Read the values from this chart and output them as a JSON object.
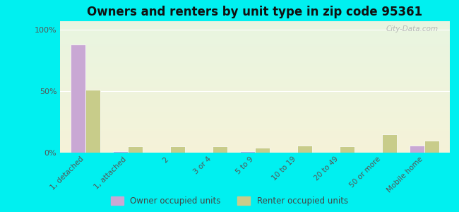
{
  "title": "Owners and renters by unit type in zip code 95361",
  "categories": [
    "1, detached",
    "1, attached",
    "2",
    "3 or 4",
    "5 to 9",
    "10 to 19",
    "20 to 49",
    "50 or more",
    "Mobile home"
  ],
  "owner_values": [
    88,
    1,
    0,
    0,
    1,
    0,
    0,
    0,
    6
  ],
  "renter_values": [
    51,
    5,
    5,
    5,
    4,
    6,
    5,
    15,
    10
  ],
  "owner_color": "#c9a8d4",
  "renter_color": "#c8cc8a",
  "background_color": "#00f0f0",
  "grad_top": "#e8f5e0",
  "grad_bottom": "#f5f2d8",
  "title_fontsize": 12,
  "ylabel_ticks": [
    "0%",
    "50%",
    "100%"
  ],
  "ytick_values": [
    0,
    50,
    100
  ],
  "ylim": [
    0,
    107
  ],
  "bar_width": 0.35,
  "watermark": "City-Data.com",
  "legend_owner": "Owner occupied units",
  "legend_renter": "Renter occupied units"
}
